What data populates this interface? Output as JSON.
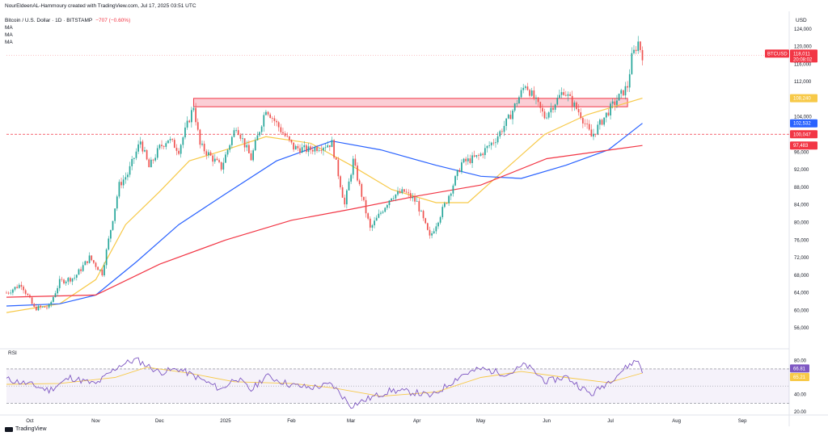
{
  "header": {
    "author_line": "NourEldeenAL-Hammoury created with TradingView.com, Jul 17, 2025 03:51 UTC",
    "symbol_line": "Bitcoin / U.S. Dollar · 1D · BITSTAMP",
    "change": "−707 (−0.60%)",
    "indicators": [
      "MA",
      "MA",
      "MA"
    ],
    "rsi_label": "RSI",
    "currency": "USD",
    "footer": "TradingView"
  },
  "colors": {
    "up": "#26a69a",
    "down": "#ef5350",
    "ma_short": "#f7c948",
    "ma_mid": "#2962ff",
    "ma_long": "#f23645",
    "rsi": "#7e57c2",
    "rsi_ma": "#f7c948",
    "zone": "#f8a5b2",
    "zone_border": "#f23645"
  },
  "chart_data": {
    "type": "line",
    "title": "",
    "ylabel": "USD",
    "ylim": [
      52000,
      128000
    ],
    "y_ticks": [
      56000,
      60000,
      64000,
      68000,
      72000,
      76000,
      80000,
      84000,
      88000,
      92000,
      96000,
      100000,
      104000,
      108000,
      112000,
      116000,
      120000,
      124000
    ],
    "y_tick_labels": [
      "56,000",
      "60,000",
      "64,000",
      "68,000",
      "72,000",
      "76,000",
      "80,000",
      "84,000",
      "88,000",
      "92,000",
      "96,000",
      "100,000",
      "104,000",
      "108,000",
      "112,000",
      "116,000",
      "120,000",
      "124,000"
    ],
    "x_range": [
      "2024-09-20",
      "2025-09-23"
    ],
    "x_ticks": [
      "2024-10-01",
      "2024-11-01",
      "2024-12-01",
      "2025-01-01",
      "2025-02-01",
      "2025-03-01",
      "2025-04-01",
      "2025-05-01",
      "2025-06-01",
      "2025-07-01",
      "2025-08-01",
      "2025-09-01"
    ],
    "x_tick_labels": [
      "Oct",
      "Nov",
      "Dec",
      "2025",
      "Feb",
      "Mar",
      "Apr",
      "May",
      "Jun",
      "Jul",
      "Aug",
      "Sep"
    ],
    "price_path": [
      [
        "2024-09-20",
        64000
      ],
      [
        "2024-09-27",
        66000
      ],
      [
        "2024-10-03",
        60500
      ],
      [
        "2024-10-10",
        60800
      ],
      [
        "2024-10-15",
        66500
      ],
      [
        "2024-10-22",
        67500
      ],
      [
        "2024-10-29",
        72000
      ],
      [
        "2024-11-04",
        68500
      ],
      [
        "2024-11-07",
        76000
      ],
      [
        "2024-11-12",
        88500
      ],
      [
        "2024-11-16",
        91000
      ],
      [
        "2024-11-22",
        98500
      ],
      [
        "2024-11-26",
        92500
      ],
      [
        "2024-12-01",
        97000
      ],
      [
        "2024-12-05",
        99000
      ],
      [
        "2024-12-10",
        96500
      ],
      [
        "2024-12-17",
        106500
      ],
      [
        "2024-12-20",
        97500
      ],
      [
        "2024-12-30",
        92500
      ],
      [
        "2025-01-06",
        102000
      ],
      [
        "2025-01-13",
        94500
      ],
      [
        "2025-01-20",
        106000
      ],
      [
        "2025-01-27",
        101000
      ],
      [
        "2025-02-02",
        97000
      ],
      [
        "2025-02-09",
        96500
      ],
      [
        "2025-02-20",
        98000
      ],
      [
        "2025-02-26",
        84000
      ],
      [
        "2025-03-02",
        94000
      ],
      [
        "2025-03-10",
        78500
      ],
      [
        "2025-03-20",
        86000
      ],
      [
        "2025-03-26",
        87000
      ],
      [
        "2025-04-01",
        84500
      ],
      [
        "2025-04-07",
        76500
      ],
      [
        "2025-04-15",
        85000
      ],
      [
        "2025-04-22",
        93500
      ],
      [
        "2025-04-30",
        95000
      ],
      [
        "2025-05-08",
        99000
      ],
      [
        "2025-05-14",
        103500
      ],
      [
        "2025-05-22",
        111500
      ],
      [
        "2025-05-31",
        104000
      ],
      [
        "2025-06-09",
        110000
      ],
      [
        "2025-06-17",
        104500
      ],
      [
        "2025-06-22",
        99500
      ],
      [
        "2025-07-01",
        106000
      ],
      [
        "2025-07-09",
        111000
      ],
      [
        "2025-07-11",
        117500
      ],
      [
        "2025-07-14",
        121000
      ],
      [
        "2025-07-16",
        118011
      ]
    ],
    "series": [
      {
        "values": [
          [
            "2024-09-20",
            59500
          ],
          [
            "2024-10-15",
            61500
          ],
          [
            "2024-11-01",
            67000
          ],
          [
            "2024-11-15",
            79500
          ],
          [
            "2024-12-01",
            87000
          ],
          [
            "2024-12-15",
            94000
          ],
          [
            "2025-01-01",
            96500
          ],
          [
            "2025-01-20",
            99500
          ],
          [
            "2025-02-10",
            98000
          ],
          [
            "2025-03-01",
            93000
          ],
          [
            "2025-03-20",
            87500
          ],
          [
            "2025-04-10",
            84500
          ],
          [
            "2025-04-25",
            84500
          ],
          [
            "2025-05-10",
            91000
          ],
          [
            "2025-05-31",
            100000
          ],
          [
            "2025-06-20",
            104500
          ],
          [
            "2025-07-16",
            108240
          ]
        ]
      },
      {
        "values": [
          [
            "2024-09-20",
            61000
          ],
          [
            "2024-10-15",
            61500
          ],
          [
            "2024-11-01",
            63500
          ],
          [
            "2024-11-20",
            71000
          ],
          [
            "2024-12-10",
            79500
          ],
          [
            "2025-01-01",
            86500
          ],
          [
            "2025-01-25",
            94000
          ],
          [
            "2025-02-20",
            98500
          ],
          [
            "2025-03-15",
            96500
          ],
          [
            "2025-04-10",
            93000
          ],
          [
            "2025-05-01",
            90500
          ],
          [
            "2025-05-20",
            90000
          ],
          [
            "2025-06-10",
            93000
          ],
          [
            "2025-06-30",
            96500
          ],
          [
            "2025-07-16",
            102532
          ]
        ]
      },
      {
        "values": [
          [
            "2024-09-20",
            63000
          ],
          [
            "2024-11-01",
            63500
          ],
          [
            "2024-12-01",
            70500
          ],
          [
            "2025-01-01",
            76000
          ],
          [
            "2025-02-01",
            80500
          ],
          [
            "2025-03-01",
            83000
          ],
          [
            "2025-04-01",
            86000
          ],
          [
            "2025-05-01",
            88500
          ],
          [
            "2025-06-01",
            94500
          ],
          [
            "2025-07-01",
            96500
          ],
          [
            "2025-07-16",
            97483
          ]
        ]
      }
    ],
    "resistance_zone": {
      "from": "2024-12-17",
      "to": "2025-07-09",
      "low": 106300,
      "high": 108200
    },
    "reference_line": 100047,
    "price_label": {
      "symbol": "BTCUSD",
      "value": "118,011",
      "countdown": "20:08:02"
    },
    "ma_labels": [
      "108,240",
      "102,532",
      "100,047",
      "97,483"
    ],
    "rsi": {
      "ylim": [
        18,
        86
      ],
      "ticks": [
        20,
        40,
        60,
        80
      ],
      "tick_labels": [
        "20.00",
        "40.00",
        "60.00",
        "80.00"
      ],
      "overbought": 70,
      "oversold": 30,
      "path": [
        [
          "2024-09-20",
          58
        ],
        [
          "2024-10-01",
          52
        ],
        [
          "2024-10-10",
          45
        ],
        [
          "2024-10-20",
          60
        ],
        [
          "2024-11-01",
          52
        ],
        [
          "2024-11-12",
          74
        ],
        [
          "2024-11-20",
          81
        ],
        [
          "2024-12-01",
          66
        ],
        [
          "2024-12-10",
          70
        ],
        [
          "2024-12-17",
          62
        ],
        [
          "2024-12-30",
          46
        ],
        [
          "2025-01-06",
          60
        ],
        [
          "2025-01-13",
          45
        ],
        [
          "2025-01-20",
          62
        ],
        [
          "2025-02-01",
          51
        ],
        [
          "2025-02-10",
          48
        ],
        [
          "2025-02-20",
          52
        ],
        [
          "2025-03-01",
          27
        ],
        [
          "2025-03-10",
          36
        ],
        [
          "2025-03-20",
          45
        ],
        [
          "2025-04-01",
          42
        ],
        [
          "2025-04-08",
          38
        ],
        [
          "2025-04-22",
          63
        ],
        [
          "2025-05-01",
          70
        ],
        [
          "2025-05-14",
          64
        ],
        [
          "2025-05-22",
          75
        ],
        [
          "2025-06-01",
          55
        ],
        [
          "2025-06-10",
          61
        ],
        [
          "2025-06-22",
          40
        ],
        [
          "2025-07-01",
          57
        ],
        [
          "2025-07-11",
          77
        ],
        [
          "2025-07-14",
          80
        ],
        [
          "2025-07-16",
          66.81
        ]
      ],
      "ma_path": [
        [
          "2024-09-20",
          52
        ],
        [
          "2024-10-15",
          53
        ],
        [
          "2024-11-10",
          60
        ],
        [
          "2024-11-25",
          72
        ],
        [
          "2024-12-15",
          65
        ],
        [
          "2025-01-05",
          55
        ],
        [
          "2025-02-01",
          53
        ],
        [
          "2025-02-20",
          48
        ],
        [
          "2025-03-15",
          38
        ],
        [
          "2025-04-10",
          43
        ],
        [
          "2025-05-01",
          60
        ],
        [
          "2025-05-20",
          67
        ],
        [
          "2025-06-10",
          60
        ],
        [
          "2025-06-30",
          54
        ],
        [
          "2025-07-16",
          65.21
        ]
      ],
      "value_labels": [
        "66.81",
        "65.21"
      ]
    }
  }
}
